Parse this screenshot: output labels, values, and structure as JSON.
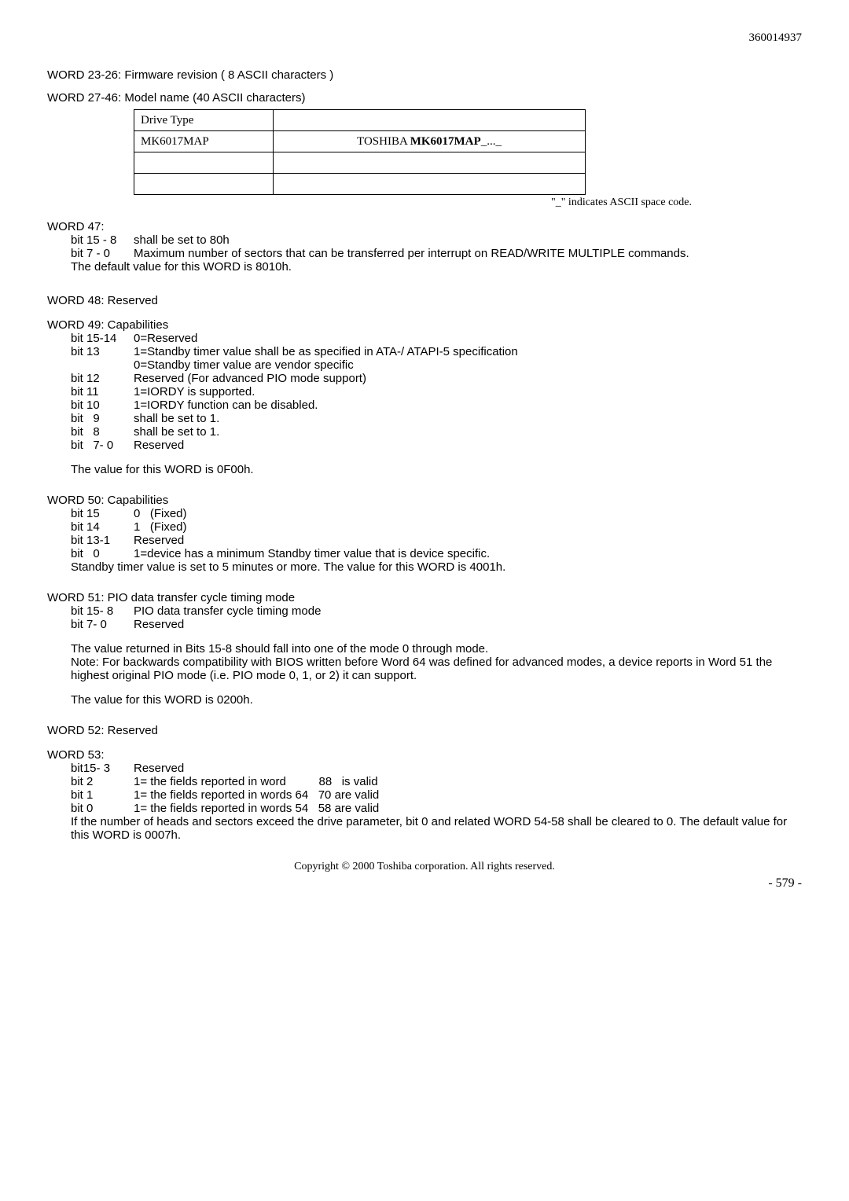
{
  "doc_id": "360014937",
  "w23": "WORD 23-26: Firmware revision ( 8 ASCII characters )",
  "w27": "WORD 27-46: Model name (40 ASCII characters)",
  "table": {
    "r1c1": "Drive Type",
    "r1c2": "",
    "r2c1": "MK6017MAP",
    "r2c2_a": "TOSHIBA ",
    "r2c2_b": "MK6017MAP",
    "r2c2_c": "_..._"
  },
  "note_ascii": "\"_\" indicates ASCII space code.",
  "w47": {
    "head": "WORD 47:",
    "b1_l": "bit 15 - 8",
    "b1_v": "shall be set to 80h",
    "b2_l": "bit 7 - 0",
    "b2_v": "Maximum number of sectors that can be transferred per interrupt on READ/WRITE MULTIPLE commands.",
    "def": "The default value for this WORD is 8010h."
  },
  "w48": "WORD 48: Reserved",
  "w49": {
    "head": "WORD 49: Capabilities",
    "rows": [
      {
        "l": "bit 15-14",
        "v": "0=Reserved"
      },
      {
        "l": "bit 13",
        "v": "1=Standby timer value shall be as specified in ATA-/ ATAPI-5 specification"
      },
      {
        "l": "",
        "v": "0=Standby timer value are vendor specific"
      },
      {
        "l": "bit 12",
        "v": "Reserved (For advanced PIO mode support)"
      },
      {
        "l": "bit 11",
        "v": "1=IORDY is supported."
      },
      {
        "l": "bit 10",
        "v": "1=IORDY function can be disabled."
      },
      {
        "l": "bit   9",
        "v": "shall be set to 1."
      },
      {
        "l": "bit   8",
        "v": "shall be set to 1."
      },
      {
        "l": "bit   7- 0",
        "v": "Reserved"
      }
    ],
    "val": "The value for this WORD is 0F00h."
  },
  "w50": {
    "head": "WORD 50: Capabilities",
    "rows": [
      {
        "l": "bit 15",
        "v": "0   (Fixed)"
      },
      {
        "l": "bit 14",
        "v": "1   (Fixed)"
      },
      {
        "l": "bit 13-1",
        "v": "Reserved"
      },
      {
        "l": "bit   0",
        "v": "1=device has a minimum Standby timer value that is device specific."
      }
    ],
    "note": "Standby timer value is set to 5 minutes or more. The value for this WORD is 4001h."
  },
  "w51": {
    "head": "WORD 51: PIO data transfer cycle timing mode",
    "rows": [
      {
        "l": "bit 15- 8",
        "v": "PIO data transfer cycle timing mode"
      },
      {
        "l": "bit 7- 0",
        "v": "Reserved"
      }
    ],
    "p1": "The value returned in Bits 15-8 should fall into one of the mode 0 through mode.",
    "p2": "Note:   For backwards compatibility with BIOS written before Word 64 was defined for advanced modes, a device reports in Word 51 the highest original PIO mode (i.e.   PIO mode 0, 1, or 2) it can support.",
    "val": "The value for this WORD is 0200h."
  },
  "w52": "WORD 52: Reserved",
  "w53": {
    "head": "WORD 53:",
    "rows": [
      {
        "l": "bit15- 3",
        "v": "Reserved"
      },
      {
        "l": "bit 2",
        "v": "1= the fields reported in word          88   is valid"
      },
      {
        "l": "bit 1",
        "v": "1= the fields reported in words 64   70 are valid"
      },
      {
        "l": "bit 0",
        "v": "1= the fields reported in words 54   58 are valid"
      }
    ],
    "note": "If the number of heads and sectors exceed the drive parameter, bit 0 and related WORD 54-58 shall be cleared to 0. The default value for this WORD is 0007h."
  },
  "copyright": "Copyright © 2000 Toshiba corporation. All rights reserved.",
  "page": "- 579 -"
}
